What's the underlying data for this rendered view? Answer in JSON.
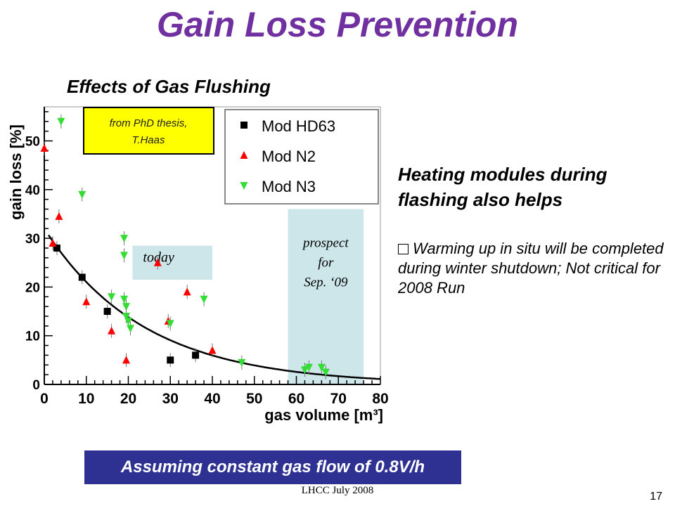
{
  "slide": {
    "title": "Gain Loss Prevention",
    "subtitle": "Effects of Gas Flushing",
    "heating_text": "Heating modules during flashing also helps",
    "bullet_text": "Warming up in situ will be completed during winter shutdown; Not critical for 2008 Run",
    "assumption_banner": "Assuming constant gas flow of 0.8V/h",
    "footer": "LHCC July 2008",
    "page_number": "17"
  },
  "colors": {
    "title": "#7030a0",
    "banner_bg": "#2e3192",
    "today_box": "#cce6ea",
    "prospect_box": "#cce6ea",
    "thesis_box": "#ffff00",
    "series_hd63": "#000000",
    "series_n2": "#ff0000",
    "series_n3": "#33dd33"
  },
  "chart_data": {
    "type": "scatter",
    "xlabel": "gas volume [m³]",
    "ylabel": "gain loss [%]",
    "xlim": [
      0,
      80
    ],
    "ylim": [
      0,
      57
    ],
    "x_ticks": [
      0,
      10,
      20,
      30,
      40,
      50,
      60,
      70,
      80
    ],
    "y_ticks": [
      0,
      10,
      20,
      30,
      40,
      50
    ],
    "grid": false,
    "legend_position": "top-right",
    "series": [
      {
        "name": "Mod HD63",
        "marker": "square",
        "color": "#000000",
        "points": [
          [
            3,
            28
          ],
          [
            9,
            22
          ],
          [
            15,
            15
          ],
          [
            30,
            5
          ],
          [
            36,
            6
          ]
        ]
      },
      {
        "name": "Mod N2",
        "marker": "triangle-up",
        "color": "#ff0000",
        "points": [
          [
            0,
            48.5
          ],
          [
            2,
            29
          ],
          [
            3.5,
            34.5
          ],
          [
            10,
            17
          ],
          [
            16,
            11
          ],
          [
            19.5,
            5
          ],
          [
            27,
            25
          ],
          [
            29.5,
            13
          ],
          [
            34,
            19
          ],
          [
            40,
            7
          ]
        ]
      },
      {
        "name": "Mod N3",
        "marker": "triangle-down",
        "color": "#33dd33",
        "points": [
          [
            4,
            54
          ],
          [
            9,
            39
          ],
          [
            16,
            18
          ],
          [
            19,
            30
          ],
          [
            19,
            26.5
          ],
          [
            19,
            17.5
          ],
          [
            19.5,
            16
          ],
          [
            19.5,
            14
          ],
          [
            20,
            13
          ],
          [
            20.5,
            11.5
          ],
          [
            30,
            12.5
          ],
          [
            38,
            17.5
          ],
          [
            47,
            4.5
          ],
          [
            62,
            3
          ],
          [
            63,
            3.5
          ],
          [
            66,
            3.5
          ],
          [
            67,
            2.5
          ]
        ]
      }
    ],
    "fit_curve": {
      "type": "exponential",
      "amplitude": 32,
      "decay": 0.042
    },
    "annotations": {
      "today": "today",
      "prospect": [
        "prospect",
        "for",
        "Sep. ‘09"
      ],
      "source_note": [
        "from PhD thesis,",
        "T.Haas"
      ]
    }
  }
}
